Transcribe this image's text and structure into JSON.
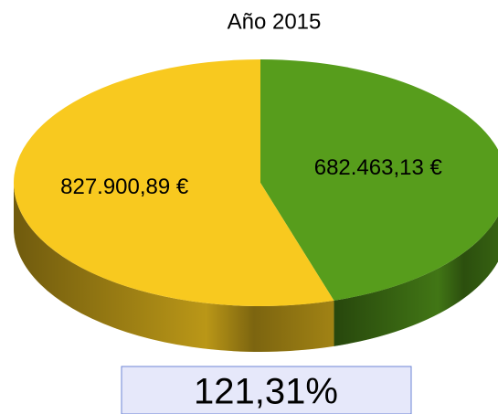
{
  "chart_data": {
    "type": "pie",
    "title": "Año 2015",
    "values": [
      682463.13,
      827900.89
    ],
    "value_labels": [
      "682.463,13 €",
      "827.900,89 €"
    ],
    "colors": [
      "#579d1c",
      "#f8c91f"
    ],
    "annotation": "121,31%"
  }
}
